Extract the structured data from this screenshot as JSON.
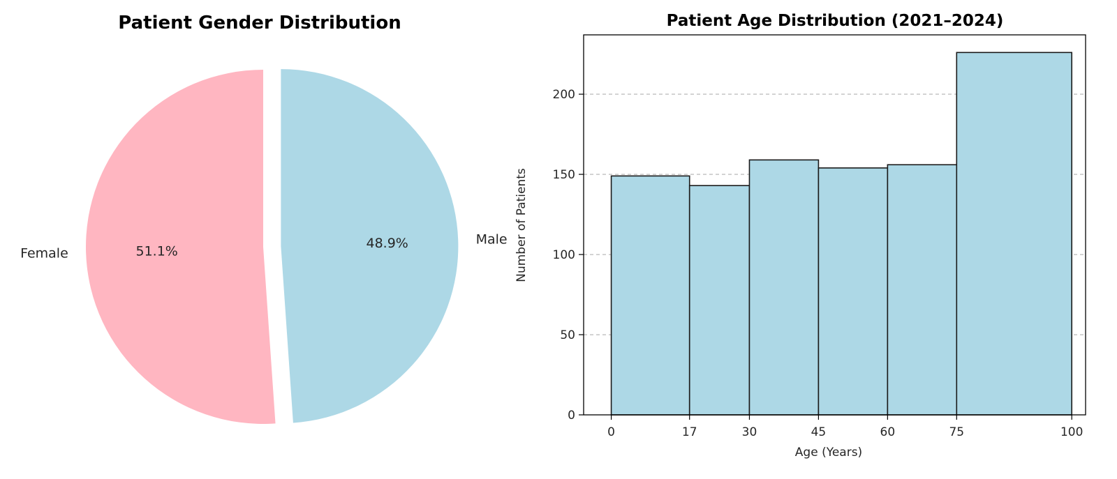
{
  "colors": {
    "female": "#ffb6c1",
    "male": "#add8e6",
    "bar_fill": "#add8e6",
    "bar_edge": "#1a1a1a",
    "grid": "#b0b0b0"
  },
  "chart_data": [
    {
      "type": "pie",
      "title": "Patient Gender Distribution",
      "labels": [
        "Female",
        "Male"
      ],
      "values": [
        51.1,
        48.9
      ],
      "pct_labels": [
        "51.1%",
        "48.9%"
      ],
      "explode": [
        0,
        0.1
      ],
      "start_angle_deg": 90,
      "colors": [
        "#ffb6c1",
        "#add8e6"
      ]
    },
    {
      "type": "bar",
      "title": "Patient Age Distribution (2021–2024)",
      "xlabel": "Age (Years)",
      "ylabel": "Number of Patients",
      "bin_edges": [
        0,
        17,
        30,
        45,
        60,
        75,
        100
      ],
      "values": [
        149,
        143,
        159,
        154,
        156,
        226
      ],
      "xticks": [
        "0",
        "17",
        "30",
        "45",
        "60",
        "75",
        "100"
      ],
      "yticks": [
        "0",
        "50",
        "100",
        "150",
        "200"
      ],
      "xlim": [
        -6,
        103
      ],
      "ylim": [
        0,
        237
      ],
      "grid": "y dashed"
    }
  ]
}
